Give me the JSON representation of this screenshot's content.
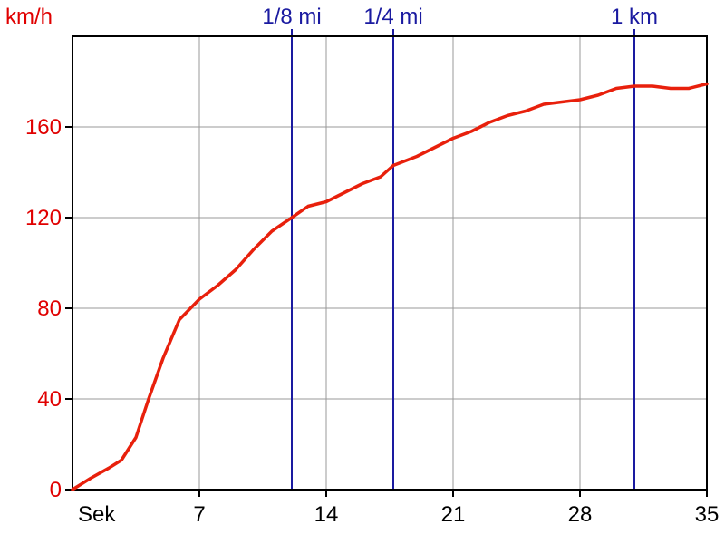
{
  "chart_data": {
    "type": "line",
    "title": "",
    "xlabel": "Sek",
    "ylabel": "km/h",
    "xlim": [
      0,
      35
    ],
    "ylim": [
      0,
      200
    ],
    "xticks": [
      7,
      14,
      21,
      28,
      35
    ],
    "yticks": [
      0,
      40,
      80,
      120,
      160
    ],
    "grid": true,
    "colors": {
      "line": "#e8200c",
      "markers": "#1a1aa0",
      "grid": "#999999",
      "axis": "#000000",
      "ytick_text": "#e00000"
    },
    "markers": [
      {
        "label": "1/8 mi",
        "x": 12.1
      },
      {
        "label": "1/4 mi",
        "x": 17.7
      },
      {
        "label": "1 km",
        "x": 31.0
      }
    ],
    "series": [
      {
        "x": [
          0,
          1,
          2,
          2.7,
          3.5,
          4.2,
          5,
          5.9,
          7,
          8,
          9,
          10,
          11,
          12.1,
          13,
          14,
          15,
          16,
          17,
          17.7,
          19,
          20,
          21,
          22,
          23,
          24,
          25,
          26,
          27,
          28,
          29,
          30,
          31,
          32,
          33,
          34,
          35
        ],
        "y": [
          0,
          5,
          9.5,
          13,
          23,
          40,
          58,
          75,
          84,
          90,
          97,
          106,
          114,
          120,
          125,
          127,
          131,
          135,
          138,
          143,
          147,
          151,
          155,
          158,
          162,
          165,
          167,
          170,
          171,
          172,
          174,
          177,
          178,
          178,
          177,
          177,
          179
        ]
      }
    ]
  }
}
